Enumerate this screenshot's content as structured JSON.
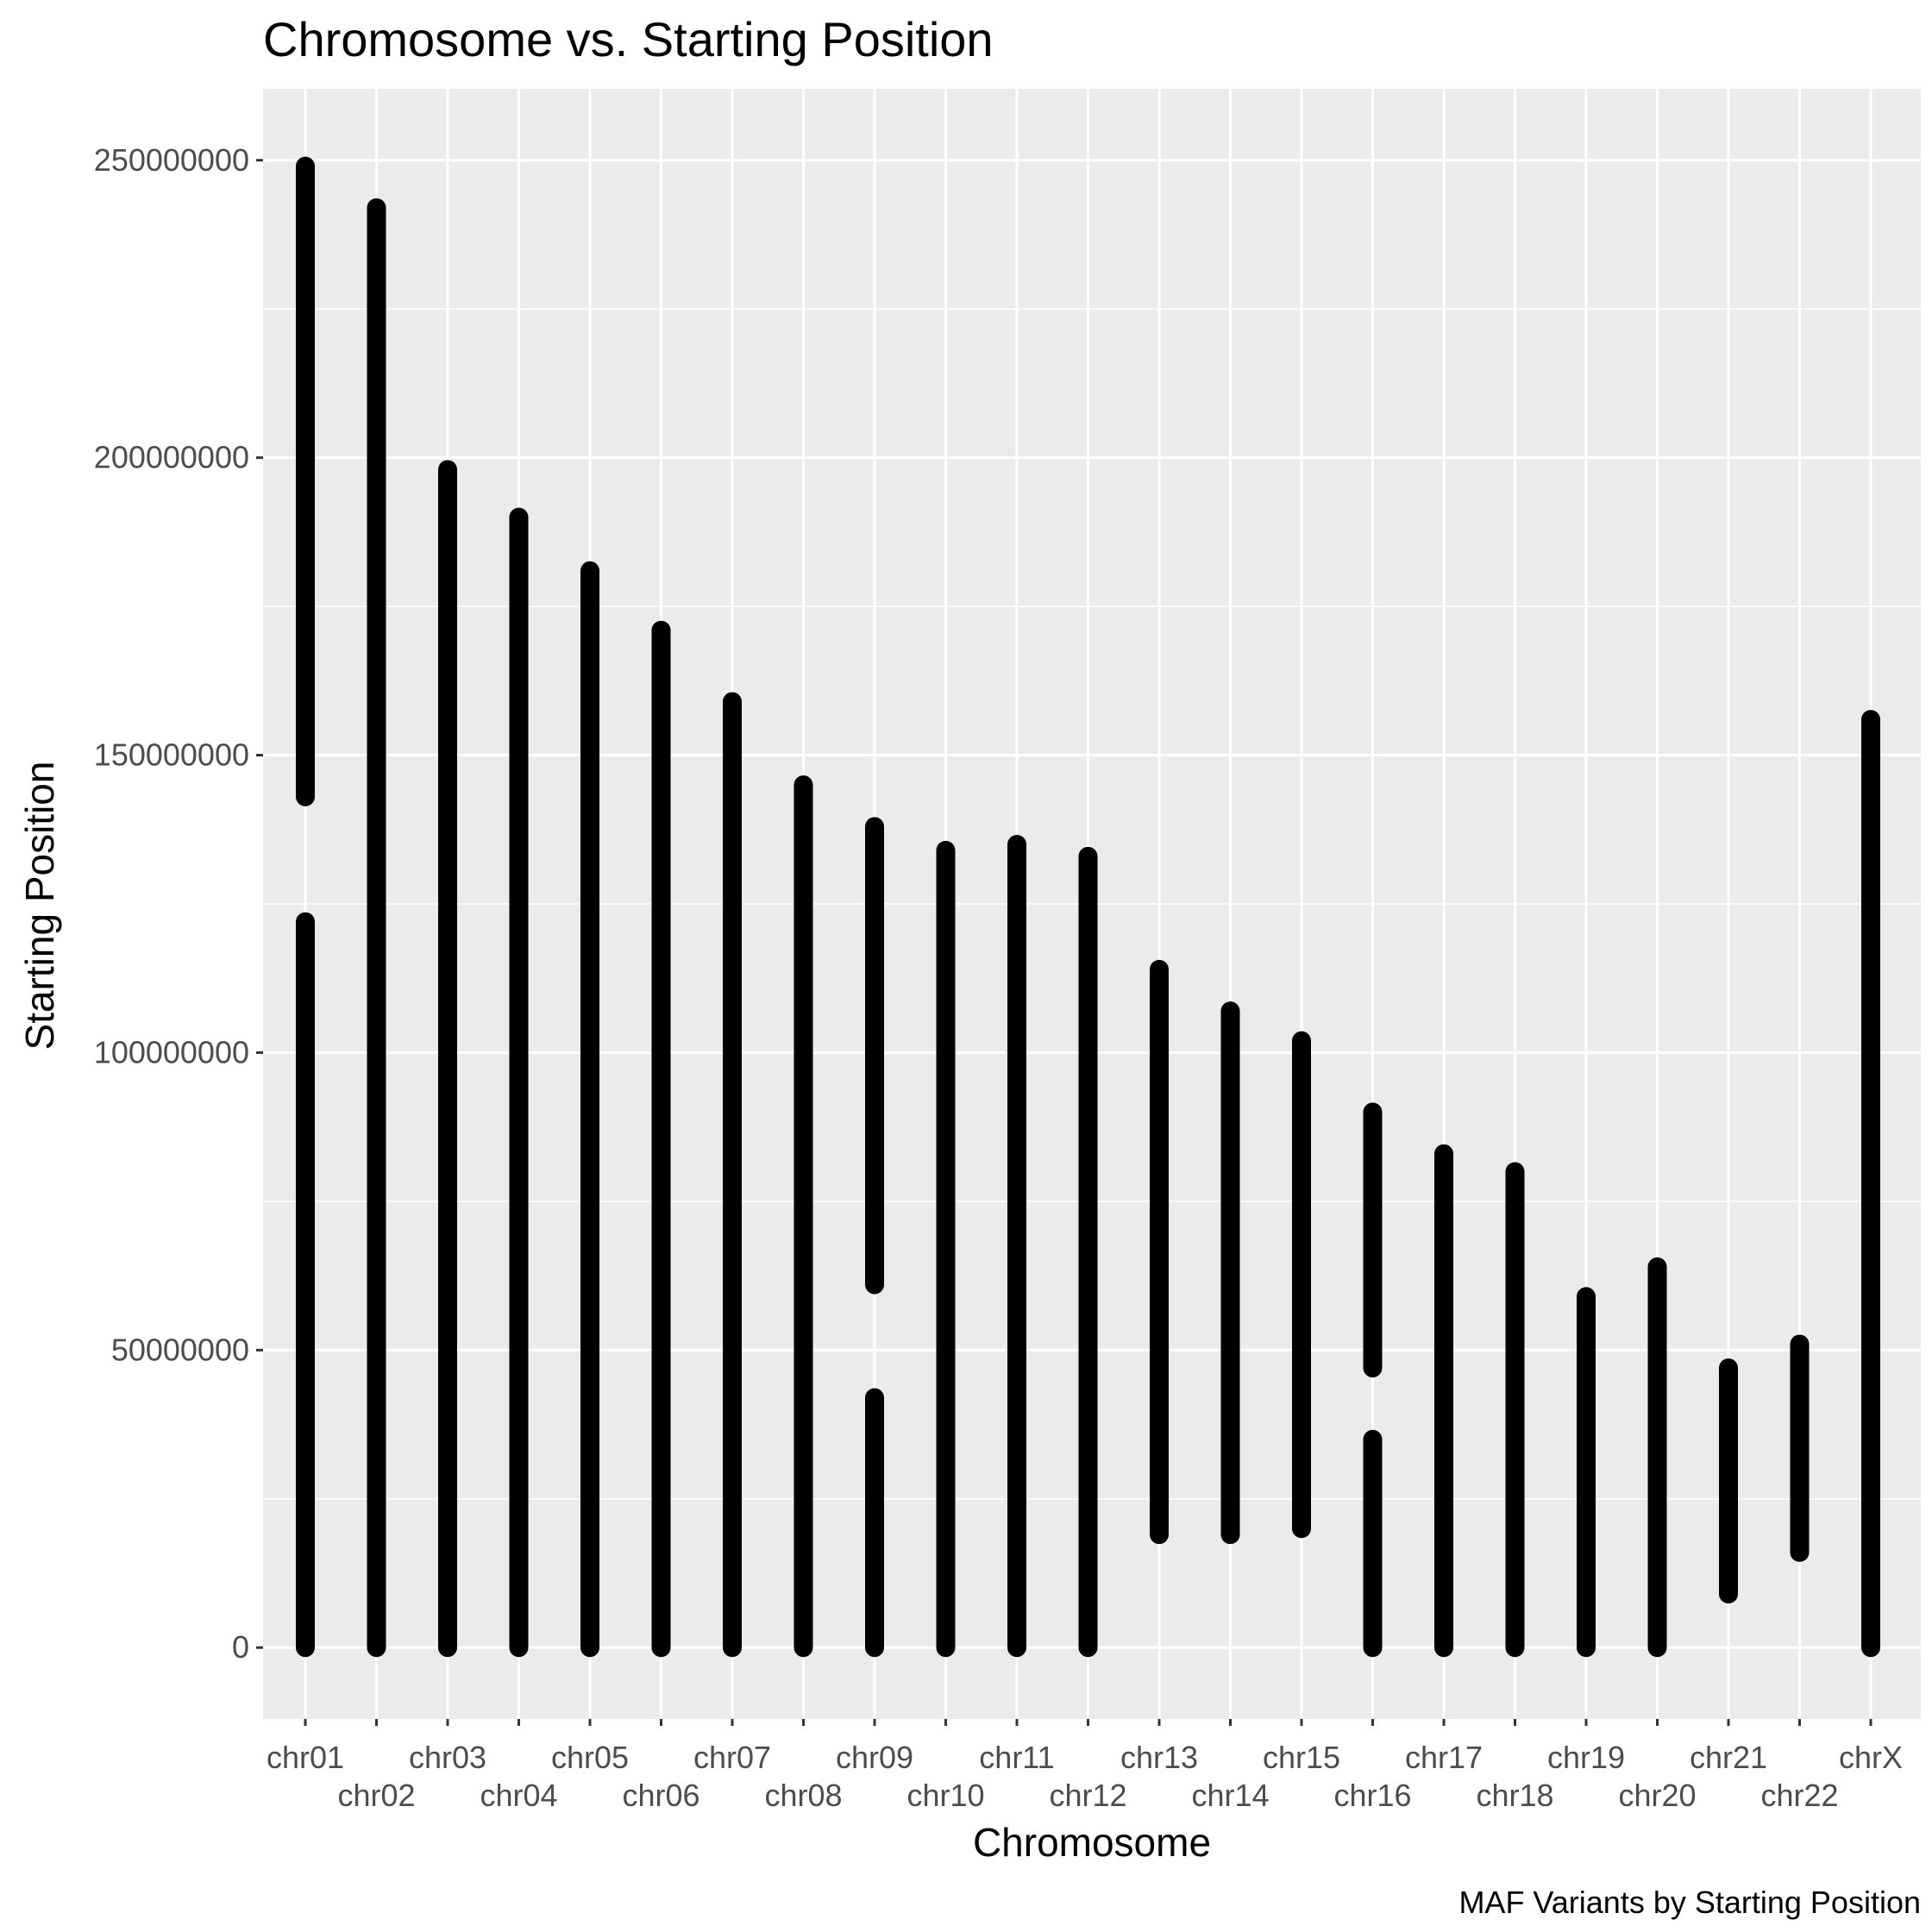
{
  "chart_data": {
    "type": "scatter",
    "title": "Chromosome vs. Starting Position",
    "xlabel": "Chromosome",
    "ylabel": "Starting Position",
    "caption": "MAF Variants by Starting Position",
    "categories": [
      "chr01",
      "chr02",
      "chr03",
      "chr04",
      "chr05",
      "chr06",
      "chr07",
      "chr08",
      "chr09",
      "chr10",
      "chr11",
      "chr12",
      "chr13",
      "chr14",
      "chr15",
      "chr16",
      "chr17",
      "chr18",
      "chr19",
      "chr20",
      "chr21",
      "chr22",
      "chrX"
    ],
    "y_ticks": [
      0,
      50000000,
      100000000,
      150000000,
      200000000,
      250000000
    ],
    "y_tick_labels": [
      "0",
      "50000000",
      "100000000",
      "150000000",
      "200000000",
      "250000000"
    ],
    "ylim": [
      -12000000,
      262000000
    ],
    "grid": true,
    "point_color": "#000000",
    "panel_background": "#ebebeb",
    "grid_color": "#ffffff",
    "series": [
      {
        "category": "chr01",
        "segments": [
          [
            0,
            122000000
          ],
          [
            143000000,
            249000000
          ]
        ]
      },
      {
        "category": "chr02",
        "segments": [
          [
            0,
            242000000
          ]
        ]
      },
      {
        "category": "chr03",
        "segments": [
          [
            0,
            198000000
          ]
        ]
      },
      {
        "category": "chr04",
        "segments": [
          [
            0,
            190000000
          ]
        ]
      },
      {
        "category": "chr05",
        "segments": [
          [
            0,
            181000000
          ]
        ]
      },
      {
        "category": "chr06",
        "segments": [
          [
            0,
            171000000
          ]
        ]
      },
      {
        "category": "chr07",
        "segments": [
          [
            0,
            159000000
          ]
        ]
      },
      {
        "category": "chr08",
        "segments": [
          [
            0,
            145000000
          ]
        ]
      },
      {
        "category": "chr09",
        "segments": [
          [
            0,
            42000000
          ],
          [
            61000000,
            138000000
          ]
        ]
      },
      {
        "category": "chr10",
        "segments": [
          [
            0,
            134000000
          ]
        ]
      },
      {
        "category": "chr11",
        "segments": [
          [
            0,
            135000000
          ]
        ]
      },
      {
        "category": "chr12",
        "segments": [
          [
            0,
            133000000
          ]
        ]
      },
      {
        "category": "chr13",
        "segments": [
          [
            19000000,
            114000000
          ]
        ]
      },
      {
        "category": "chr14",
        "segments": [
          [
            19000000,
            107000000
          ]
        ]
      },
      {
        "category": "chr15",
        "segments": [
          [
            20000000,
            102000000
          ]
        ]
      },
      {
        "category": "chr16",
        "segments": [
          [
            0,
            35000000
          ],
          [
            47000000,
            90000000
          ]
        ]
      },
      {
        "category": "chr17",
        "segments": [
          [
            0,
            83000000
          ]
        ]
      },
      {
        "category": "chr18",
        "segments": [
          [
            0,
            80000000
          ]
        ]
      },
      {
        "category": "chr19",
        "segments": [
          [
            0,
            59000000
          ]
        ]
      },
      {
        "category": "chr20",
        "segments": [
          [
            0,
            64000000
          ]
        ]
      },
      {
        "category": "chr21",
        "segments": [
          [
            9000000,
            47000000
          ]
        ]
      },
      {
        "category": "chr22",
        "segments": [
          [
            16000000,
            51000000
          ]
        ]
      },
      {
        "category": "chrX",
        "segments": [
          [
            0,
            156000000
          ]
        ]
      }
    ]
  }
}
